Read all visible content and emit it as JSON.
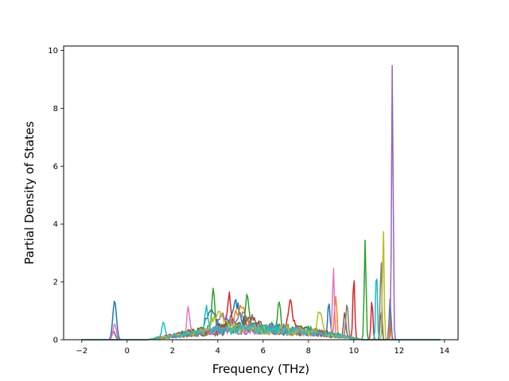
{
  "chart_data": {
    "type": "line",
    "title": "",
    "xlabel": "Frequency (THz)",
    "ylabel": "Partial Density of States",
    "xlim": [
      -2.8,
      14.6
    ],
    "ylim": [
      0,
      10.15
    ],
    "xticks": [
      -2,
      0,
      2,
      4,
      6,
      8,
      10,
      12,
      14
    ],
    "yticks": [
      0,
      2,
      4,
      6,
      8,
      10
    ],
    "x_range": [
      -2,
      13.8
    ],
    "grid": false,
    "legend": "none",
    "palette": [
      "#1f77b4",
      "#ff7f0e",
      "#2ca02c",
      "#d62728",
      "#9467bd",
      "#8c564b",
      "#e377c2",
      "#7f7f7f",
      "#bcbd22",
      "#17becf"
    ],
    "series": [
      {
        "color": "#1f77b4",
        "peaks": [
          [
            -0.55,
            1.35,
            0.08
          ],
          [
            3.7,
            0.75,
            0.18
          ],
          [
            4.8,
            0.85,
            0.2
          ],
          [
            8.9,
            1.0,
            0.05
          ],
          [
            11.6,
            1.4,
            0.04
          ]
        ],
        "band": 0.45
      },
      {
        "color": "#ff7f0e",
        "peaks": [
          [
            -0.6,
            0.25,
            0.08
          ],
          [
            5.0,
            0.7,
            0.25
          ],
          [
            9.2,
            1.4,
            0.05
          ],
          [
            11.6,
            0.9,
            0.03
          ]
        ],
        "band": 0.4
      },
      {
        "color": "#2ca02c",
        "peaks": [
          [
            3.8,
            1.3,
            0.06
          ],
          [
            5.3,
            1.05,
            0.08
          ],
          [
            6.7,
            1.1,
            0.06
          ],
          [
            10.5,
            3.45,
            0.04
          ]
        ],
        "band": 0.5
      },
      {
        "color": "#d62728",
        "peaks": [
          [
            4.5,
            1.1,
            0.08
          ],
          [
            7.2,
            0.9,
            0.1
          ],
          [
            10.0,
            2.2,
            0.04
          ],
          [
            10.8,
            1.4,
            0.04
          ]
        ],
        "band": 0.45
      },
      {
        "color": "#9467bd",
        "peaks": [
          [
            -0.6,
            0.3,
            0.08
          ],
          [
            4.2,
            0.6,
            0.2
          ],
          [
            11.7,
            9.65,
            0.035
          ]
        ],
        "band": 0.4
      },
      {
        "color": "#8c564b",
        "peaks": [
          [
            5.5,
            0.5,
            0.3
          ],
          [
            9.6,
            0.9,
            0.05
          ],
          [
            11.2,
            1.0,
            0.04
          ]
        ],
        "band": 0.35
      },
      {
        "color": "#e377c2",
        "peaks": [
          [
            -0.55,
            0.55,
            0.07
          ],
          [
            2.7,
            0.95,
            0.06
          ],
          [
            9.1,
            2.35,
            0.04
          ]
        ],
        "band": 0.4
      },
      {
        "color": "#7f7f7f",
        "peaks": [
          [
            5.0,
            0.55,
            0.3
          ],
          [
            9.7,
            1.2,
            0.05
          ],
          [
            11.2,
            2.9,
            0.035
          ]
        ],
        "band": 0.35
      },
      {
        "color": "#bcbd22",
        "peaks": [
          [
            4.0,
            0.6,
            0.25
          ],
          [
            8.5,
            0.8,
            0.1
          ],
          [
            11.3,
            3.9,
            0.035
          ]
        ],
        "band": 0.4
      },
      {
        "color": "#17becf",
        "peaks": [
          [
            1.6,
            0.55,
            0.06
          ],
          [
            3.5,
            0.9,
            0.06
          ],
          [
            11.0,
            2.6,
            0.035
          ]
        ],
        "band": 0.42
      }
    ]
  }
}
